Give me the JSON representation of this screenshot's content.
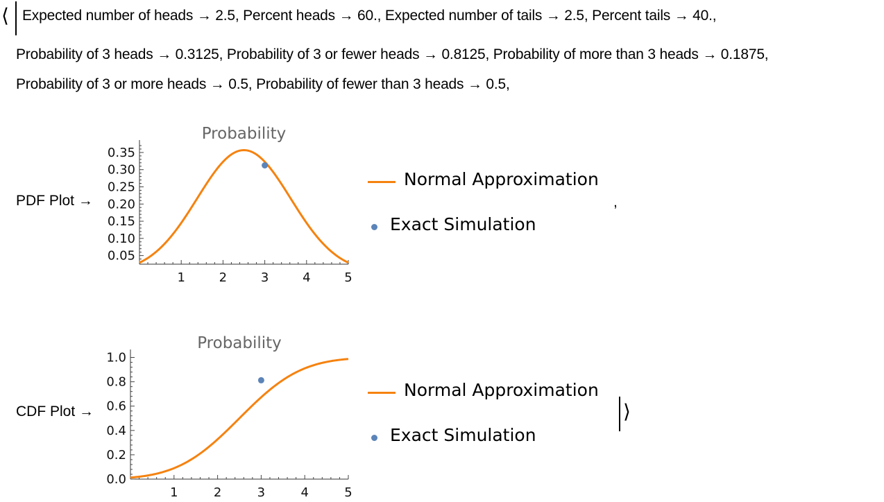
{
  "row1": "Expected number of heads → 2.5, Percent heads → 60., Expected number of tails → 2.5, Percent tails → 40.,",
  "row2": "Probability of 3 heads → 0.3125, Probability of 3 or fewer heads → 0.8125, Probability of more than 3 heads → 0.1875,",
  "row3": "Probability of 3 or more heads → 0.5, Probability of fewer than 3 heads → 0.5,",
  "pdf_label": "PDF Plot →",
  "cdf_label": "CDF Plot →",
  "separator_comma": ",",
  "brackets": {
    "open": "⟨",
    "close": "⟩"
  },
  "colors": {
    "curve": "#f5820f",
    "point": "#5b84b8",
    "title": "#666666"
  },
  "chart_data": [
    {
      "type": "line",
      "title": "Probability",
      "xlim": [
        0,
        5
      ],
      "ylim": [
        0.025,
        0.37
      ],
      "x_ticks": [
        1,
        2,
        3,
        4,
        5
      ],
      "y_ticks": [
        0.05,
        0.1,
        0.15,
        0.2,
        0.25,
        0.3,
        0.35
      ],
      "y_tick_labels": [
        "0.05",
        "0.10",
        "0.15",
        "0.20",
        "0.25",
        "0.30",
        "0.35"
      ],
      "series": [
        {
          "name": "Normal Approximation",
          "kind": "line",
          "distribution": "normal-pdf",
          "mean": 2.5,
          "sd": 1.118
        },
        {
          "name": "Exact Simulation",
          "kind": "scatter",
          "points": [
            [
              3,
              0.3125
            ]
          ]
        }
      ],
      "legend": "right"
    },
    {
      "type": "line",
      "title": "Probability",
      "xlim": [
        0,
        5
      ],
      "ylim": [
        0,
        1.02
      ],
      "x_ticks": [
        1,
        2,
        3,
        4,
        5
      ],
      "y_ticks": [
        0.0,
        0.2,
        0.4,
        0.6,
        0.8,
        1.0
      ],
      "y_tick_labels": [
        "0.0",
        "0.2",
        "0.4",
        "0.6",
        "0.8",
        "1.0"
      ],
      "series": [
        {
          "name": "Normal Approximation",
          "kind": "line",
          "distribution": "normal-cdf",
          "mean": 2.5,
          "sd": 1.118
        },
        {
          "name": "Exact Simulation",
          "kind": "scatter",
          "points": [
            [
              3,
              0.8125
            ]
          ]
        }
      ],
      "legend": "right"
    }
  ]
}
